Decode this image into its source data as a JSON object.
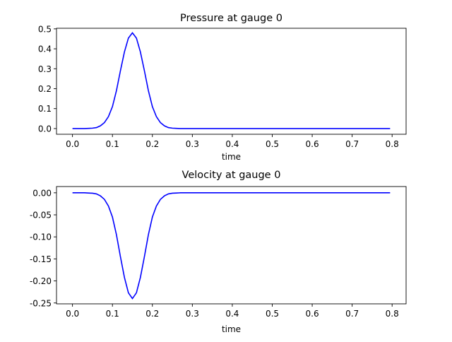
{
  "chart_data": [
    {
      "type": "line",
      "title": "Pressure at gauge 0",
      "xlabel": "time",
      "ylabel": "",
      "xlim": [
        -0.04,
        0.835
      ],
      "ylim": [
        -0.0285,
        0.503
      ],
      "xticks": [
        "0.0",
        "0.1",
        "0.2",
        "0.3",
        "0.4",
        "0.5",
        "0.6",
        "0.7",
        "0.8"
      ],
      "yticks": [
        "0.0",
        "0.1",
        "0.2",
        "0.3",
        "0.4",
        "0.5"
      ],
      "grid": false,
      "color": "#0000ff",
      "x": [
        0.0,
        0.01,
        0.02,
        0.03,
        0.04,
        0.05,
        0.06,
        0.07,
        0.08,
        0.09,
        0.1,
        0.11,
        0.12,
        0.13,
        0.14,
        0.15,
        0.16,
        0.17,
        0.18,
        0.19,
        0.2,
        0.21,
        0.22,
        0.23,
        0.24,
        0.25,
        0.26,
        0.27,
        0.28,
        0.3,
        0.4,
        0.5,
        0.6,
        0.7,
        0.795
      ],
      "y": [
        0,
        0,
        0,
        0,
        0.001,
        0.002,
        0.005,
        0.014,
        0.03,
        0.06,
        0.11,
        0.19,
        0.29,
        0.384,
        0.454,
        0.48,
        0.454,
        0.384,
        0.29,
        0.19,
        0.11,
        0.06,
        0.03,
        0.014,
        0.005,
        0.002,
        0.001,
        0,
        0,
        0,
        0,
        0,
        0,
        0,
        0
      ]
    },
    {
      "type": "line",
      "title": "Velocity at gauge 0",
      "xlabel": "time",
      "ylabel": "",
      "xlim": [
        -0.04,
        0.835
      ],
      "ylim": [
        -0.252,
        0.0142
      ],
      "xticks": [
        "0.0",
        "0.1",
        "0.2",
        "0.3",
        "0.4",
        "0.5",
        "0.6",
        "0.7",
        "0.8"
      ],
      "yticks": [
        "0.00",
        "-0.05",
        "-0.10",
        "-0.15",
        "-0.20",
        "-0.25"
      ],
      "grid": false,
      "color": "#0000ff",
      "x": [
        0.0,
        0.01,
        0.02,
        0.03,
        0.04,
        0.05,
        0.06,
        0.07,
        0.08,
        0.09,
        0.1,
        0.11,
        0.12,
        0.13,
        0.14,
        0.15,
        0.16,
        0.17,
        0.18,
        0.19,
        0.2,
        0.21,
        0.22,
        0.23,
        0.24,
        0.25,
        0.26,
        0.27,
        0.28,
        0.3,
        0.4,
        0.5,
        0.6,
        0.7,
        0.795
      ],
      "y": [
        0,
        0,
        0,
        0,
        -0.0005,
        -0.001,
        -0.0025,
        -0.007,
        -0.015,
        -0.03,
        -0.055,
        -0.095,
        -0.145,
        -0.192,
        -0.227,
        -0.24,
        -0.227,
        -0.192,
        -0.145,
        -0.095,
        -0.055,
        -0.03,
        -0.015,
        -0.007,
        -0.0025,
        -0.001,
        -0.0005,
        0,
        0,
        0,
        0,
        0,
        0,
        0,
        0
      ]
    }
  ]
}
